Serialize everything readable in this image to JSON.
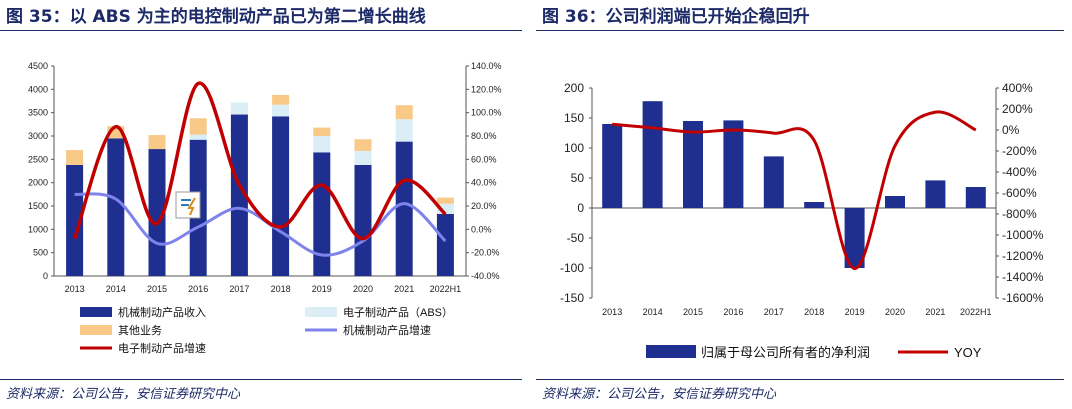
{
  "left": {
    "title": "图 35：以 ABS 为主的电控制动产品已为第二增长曲线",
    "source": "资料来源：公司公告，安信证券研究中心",
    "chart_data": {
      "type": "bar",
      "stacked": true,
      "categories": [
        "2013",
        "2014",
        "2015",
        "2016",
        "2017",
        "2018",
        "2019",
        "2020",
        "2021",
        "2022H1"
      ],
      "series": [
        {
          "name": "机械制动产品收入",
          "color": "#1f2f8f",
          "values": [
            2380,
            2950,
            2720,
            2920,
            3460,
            3420,
            2650,
            2380,
            2880,
            1330
          ]
        },
        {
          "name": "电子制动产品（ABS）",
          "color": "#dbeef6",
          "values": [
            0,
            0,
            0,
            110,
            260,
            250,
            350,
            300,
            480,
            220
          ]
        },
        {
          "name": "其他业务",
          "color": "#f8c987",
          "values": [
            320,
            260,
            300,
            350,
            0,
            210,
            180,
            250,
            300,
            130
          ]
        }
      ],
      "lines": [
        {
          "name": "机械制动产品增速",
          "color": "#7f84ec",
          "axis": "right",
          "values": [
            30,
            26,
            -12,
            2,
            18,
            -2,
            -22,
            -10,
            22,
            -10
          ]
        },
        {
          "name": "电子制动产品增速",
          "color": "#c00000",
          "axis": "right",
          "values": [
            -8,
            88,
            5,
            125,
            38,
            2,
            38,
            -8,
            42,
            13
          ]
        }
      ],
      "ylim_left": [
        0,
        4500
      ],
      "yticks_left": [
        "0",
        "500",
        "1000",
        "1500",
        "2000",
        "2500",
        "3000",
        "3500",
        "4000",
        "4500"
      ],
      "ylim_right": [
        -40,
        140
      ],
      "yticks_right": [
        "-40.0%",
        "-20.0%",
        "0.0%",
        "20.0%",
        "40.0%",
        "60.0%",
        "80.0%",
        "100.0%",
        "120.0%",
        "140.0%"
      ],
      "legend_labels": [
        "机械制动产品收入",
        "电子制动产品（ABS）",
        "其他业务",
        "机械制动产品增速",
        "电子制动产品增速"
      ]
    }
  },
  "right": {
    "title": "图 36：公司利润端已开始企稳回升",
    "source": "资料来源：公司公告，安信证券研究中心",
    "chart_data": {
      "type": "bar",
      "categories": [
        "2013",
        "2014",
        "2015",
        "2016",
        "2017",
        "2018",
        "2019",
        "2020",
        "2021",
        "2022H1"
      ],
      "series": [
        {
          "name": "归属于母公司所有者的净利润",
          "color": "#1f2f8f",
          "values": [
            140,
            178,
            145,
            146,
            86,
            10,
            -100,
            20,
            46,
            35
          ]
        }
      ],
      "lines": [
        {
          "name": "YOY",
          "color": "#c00000",
          "axis": "right",
          "values": [
            55,
            20,
            -20,
            0,
            -30,
            -100,
            -1320,
            -150,
            170,
            0
          ]
        }
      ],
      "ylim_left": [
        -150,
        200
      ],
      "yticks_left": [
        "-150",
        "-100",
        "-50",
        "0",
        "50",
        "100",
        "150",
        "200"
      ],
      "ylim_right": [
        -1600,
        400
      ],
      "yticks_right": [
        "-1600%",
        "-1400%",
        "-1200%",
        "-1000%",
        "-800%",
        "-600%",
        "-400%",
        "-200%",
        "0%",
        "200%",
        "400%"
      ],
      "legend_labels": [
        "归属于母公司所有者的净利润",
        "YOY"
      ]
    }
  }
}
